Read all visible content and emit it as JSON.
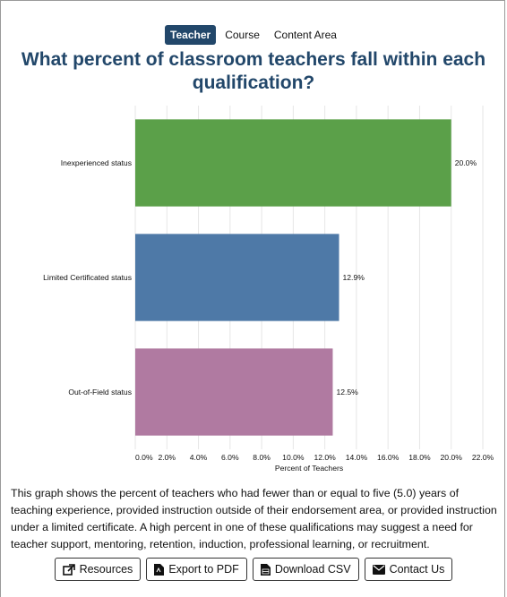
{
  "tabs": [
    {
      "label": "Teacher",
      "active": true
    },
    {
      "label": "Course",
      "active": false
    },
    {
      "label": "Content Area",
      "active": false
    }
  ],
  "title": "What percent of classroom teachers fall within each qualification?",
  "chart_data": {
    "type": "bar",
    "orientation": "horizontal",
    "categories": [
      "Inexperienced status",
      "Limited Certificated status",
      "Out-of-Field status"
    ],
    "values": [
      20.0,
      12.9,
      12.5
    ],
    "value_labels": [
      "20.0%",
      "12.9%",
      "12.5%"
    ],
    "colors": [
      "#5ba049",
      "#4e79a7",
      "#b07aa1"
    ],
    "xlabel": "Percent of Teachers",
    "xlim": [
      0,
      22
    ],
    "xticks": [
      0,
      2,
      4,
      6,
      8,
      10,
      12,
      14,
      16,
      18,
      20,
      22
    ],
    "xtick_labels": [
      "0.0%",
      "2.0%",
      "4.0%",
      "6.0%",
      "8.0%",
      "10.0%",
      "12.0%",
      "14.0%",
      "16.0%",
      "18.0%",
      "20.0%",
      "22.0%"
    ],
    "grid": true
  },
  "description": "This graph shows the percent of teachers who had fewer than or equal to five (5.0) years of teaching experience, provided instruction outside of their endorsement area, or provided instruction under a limited certificate. A high percent in one of these qualifications may suggest a need for teacher support, mentoring, retention, induction, professional learning, or recruitment.",
  "buttons": {
    "resources": {
      "label": "Resources",
      "icon": "external-link-icon"
    },
    "export_pdf": {
      "label": "Export to PDF",
      "icon": "pdf-file-icon"
    },
    "download_csv": {
      "label": "Download CSV",
      "icon": "csv-file-icon"
    },
    "contact": {
      "label": "Contact Us",
      "icon": "envelope-icon"
    }
  }
}
